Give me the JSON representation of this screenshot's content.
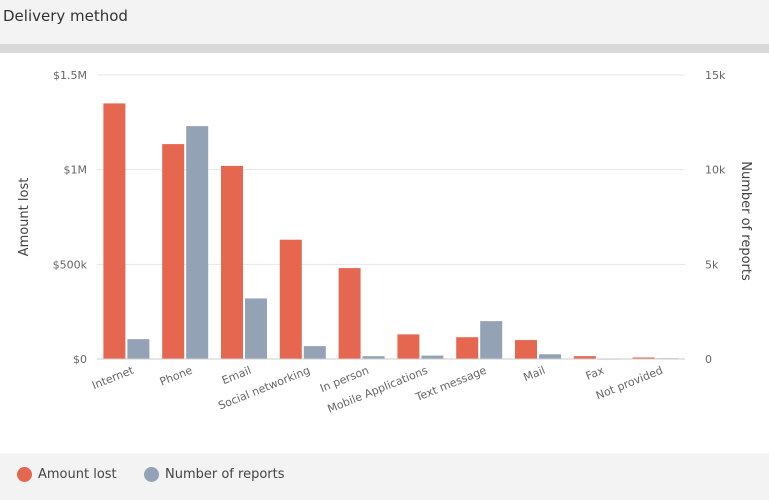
{
  "panel": {
    "title": "Delivery method"
  },
  "colors": {
    "amount": "#e5674f",
    "reports": "#93a3b5",
    "axis": "#666666",
    "grid": "#e6e6e6"
  },
  "chart_data": {
    "type": "bar",
    "title": "Delivery method",
    "categories": [
      "Internet",
      "Phone",
      "Email",
      "Social networking",
      "In person",
      "Mobile Applications",
      "Text message",
      "Mail",
      "Fax",
      "Not provided"
    ],
    "series": [
      {
        "name": "Amount lost",
        "axis": "left",
        "values": [
          1350000,
          1135000,
          1020000,
          630000,
          480000,
          130000,
          115000,
          100000,
          15000,
          8000
        ]
      },
      {
        "name": "Number of reports",
        "axis": "right",
        "values": [
          1050,
          12300,
          3200,
          680,
          150,
          180,
          2000,
          250,
          10,
          40
        ]
      }
    ],
    "ylabel": "Amount lost",
    "y2label": "Number of reports",
    "ylim": [
      0,
      1500000
    ],
    "y2lim": [
      0,
      15000
    ],
    "yticks": [
      {
        "value": 0,
        "label": "$0"
      },
      {
        "value": 500000,
        "label": "$500k"
      },
      {
        "value": 1000000,
        "label": "$1M"
      },
      {
        "value": 1500000,
        "label": "$1.5M"
      }
    ],
    "y2ticks": [
      {
        "value": 0,
        "label": "0"
      },
      {
        "value": 5000,
        "label": "5k"
      },
      {
        "value": 10000,
        "label": "10k"
      },
      {
        "value": 15000,
        "label": "15k"
      }
    ],
    "grid": true,
    "legend": "bottom-left"
  }
}
